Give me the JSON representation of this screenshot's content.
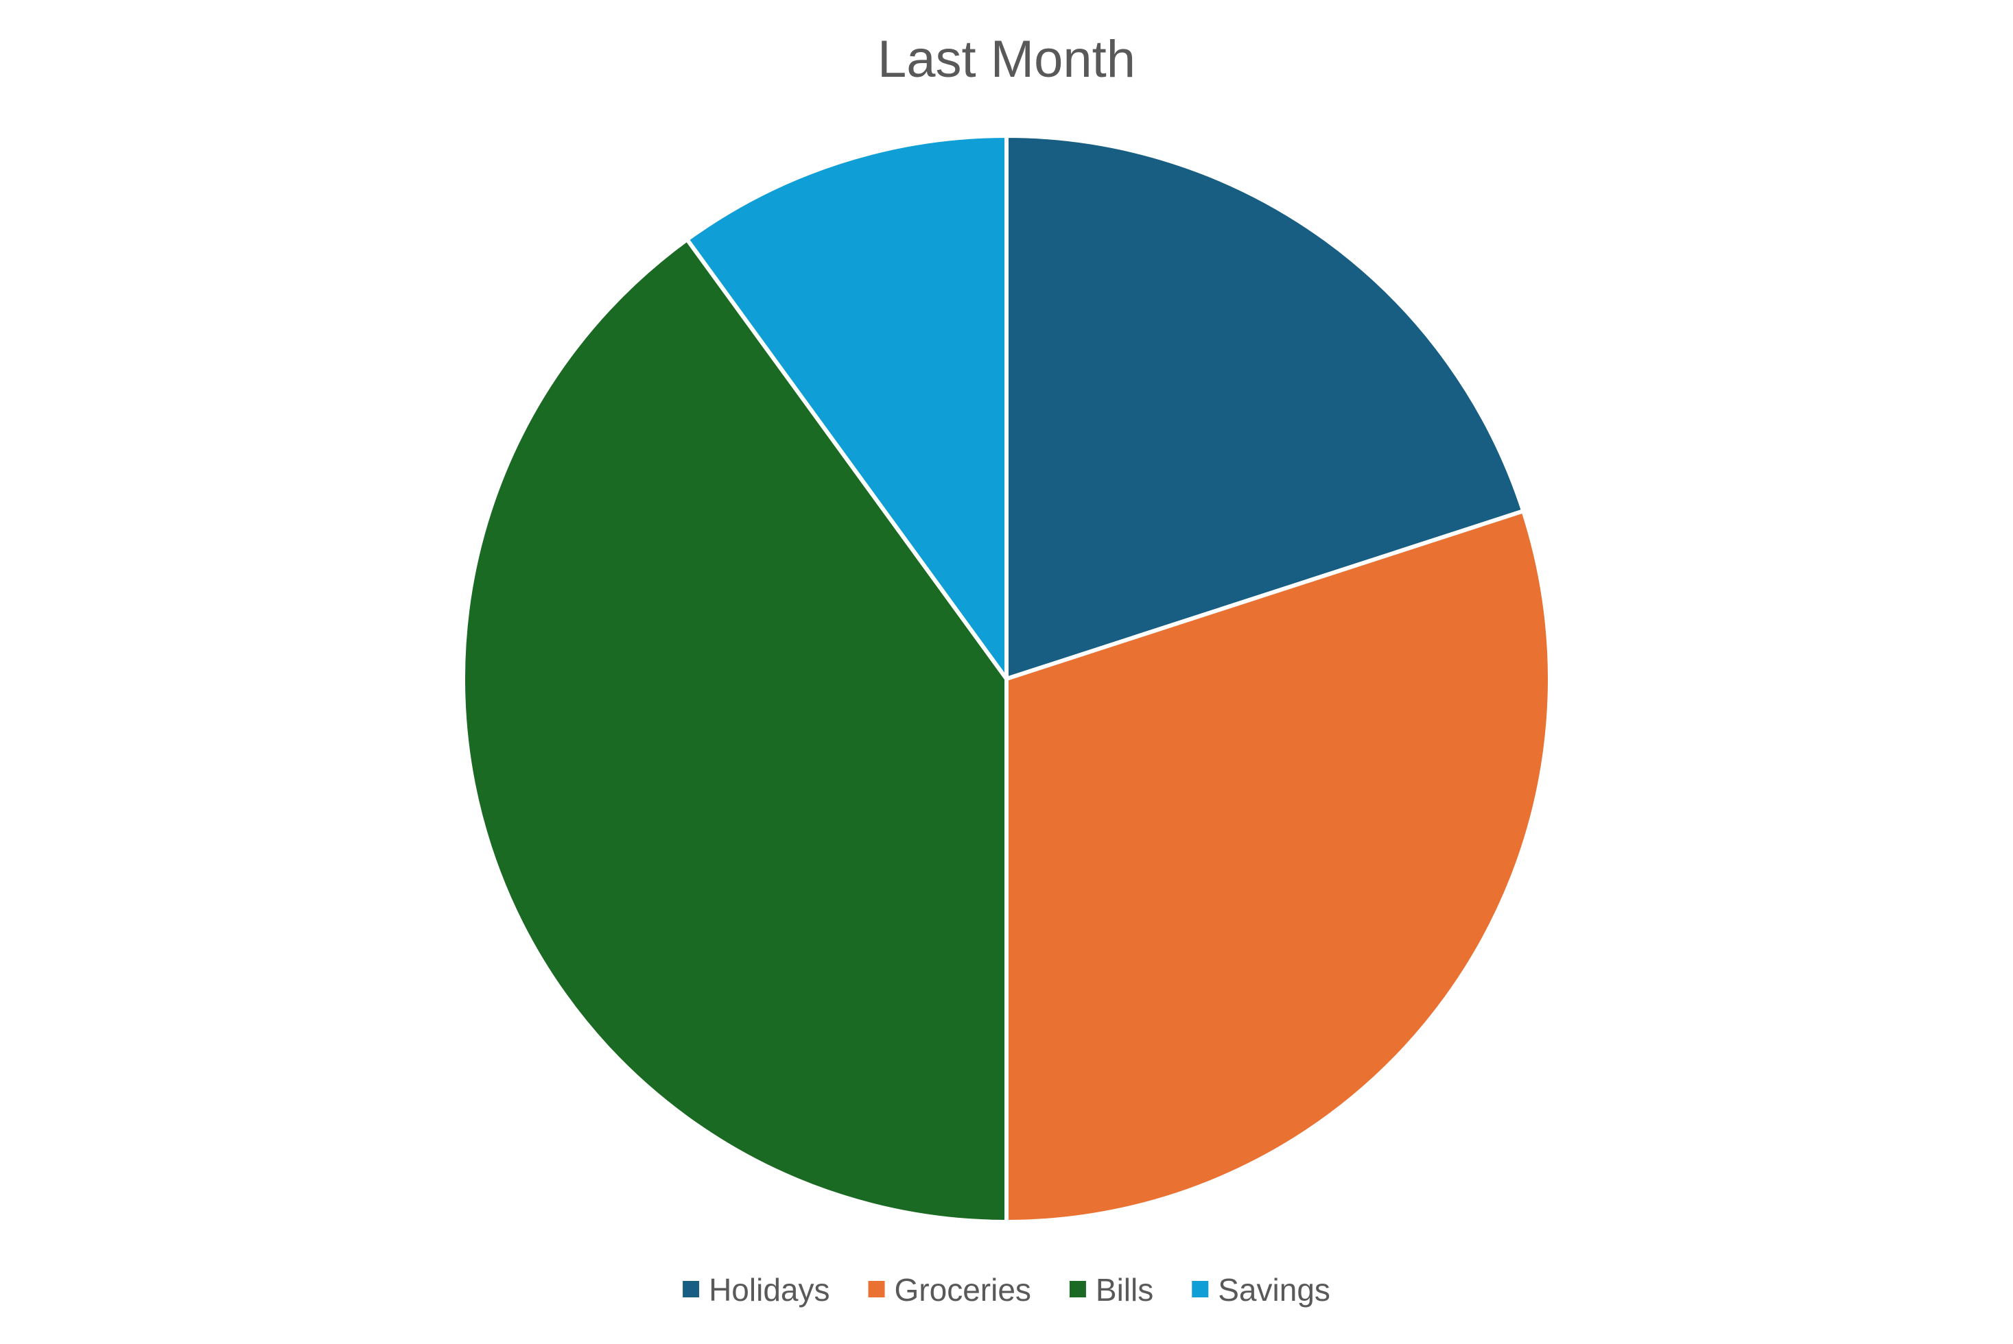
{
  "chart_data": {
    "type": "pie",
    "title": "Last Month",
    "categories": [
      "Holidays",
      "Groceries",
      "Bills",
      "Savings"
    ],
    "values": [
      20,
      30,
      40,
      10
    ],
    "colors": [
      "#175E82",
      "#E97132",
      "#1A6A24",
      "#0F9ED5"
    ],
    "start_angle_deg": 0,
    "direction": "clockwise",
    "legend_position": "bottom"
  }
}
